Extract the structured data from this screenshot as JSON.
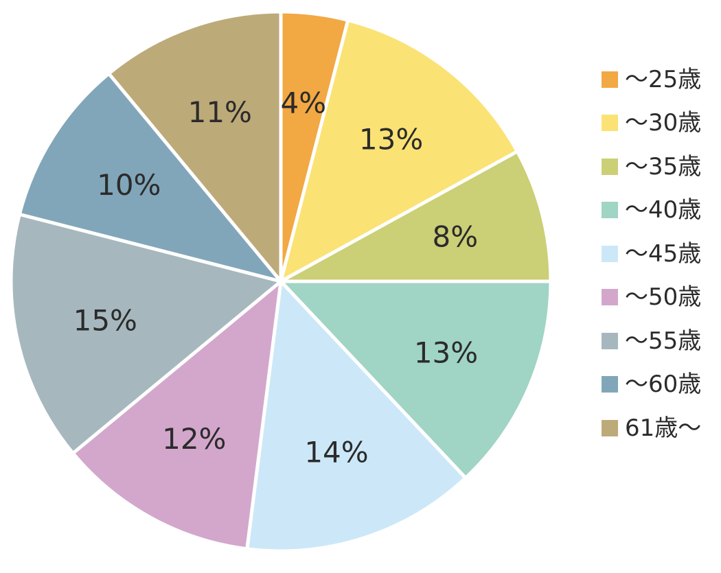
{
  "chart_data": {
    "type": "pie",
    "unit": "%",
    "start": "top, clockwise",
    "slices": [
      {
        "label": "～25歳",
        "value": 4,
        "text": "4%",
        "color": "#F2A843"
      },
      {
        "label": "～30歳",
        "value": 13,
        "text": "13%",
        "color": "#FBE274"
      },
      {
        "label": "～35歳",
        "value": 8,
        "text": "8%",
        "color": "#CBCF76"
      },
      {
        "label": "～40歳",
        "value": 13,
        "text": "13%",
        "color": "#A0D4C4"
      },
      {
        "label": "～45歳",
        "value": 14,
        "text": "14%",
        "color": "#CCE8F8"
      },
      {
        "label": "～50歳",
        "value": 12,
        "text": "12%",
        "color": "#D3A7CC"
      },
      {
        "label": "～55歳",
        "value": 15,
        "text": "15%",
        "color": "#A6B8BE"
      },
      {
        "label": "～60歳",
        "value": 10,
        "text": "10%",
        "color": "#81A6B9"
      },
      {
        "label": "61歳～",
        "value": 11,
        "text": "11%",
        "color": "#BDAA79"
      }
    ],
    "legend": "right"
  }
}
